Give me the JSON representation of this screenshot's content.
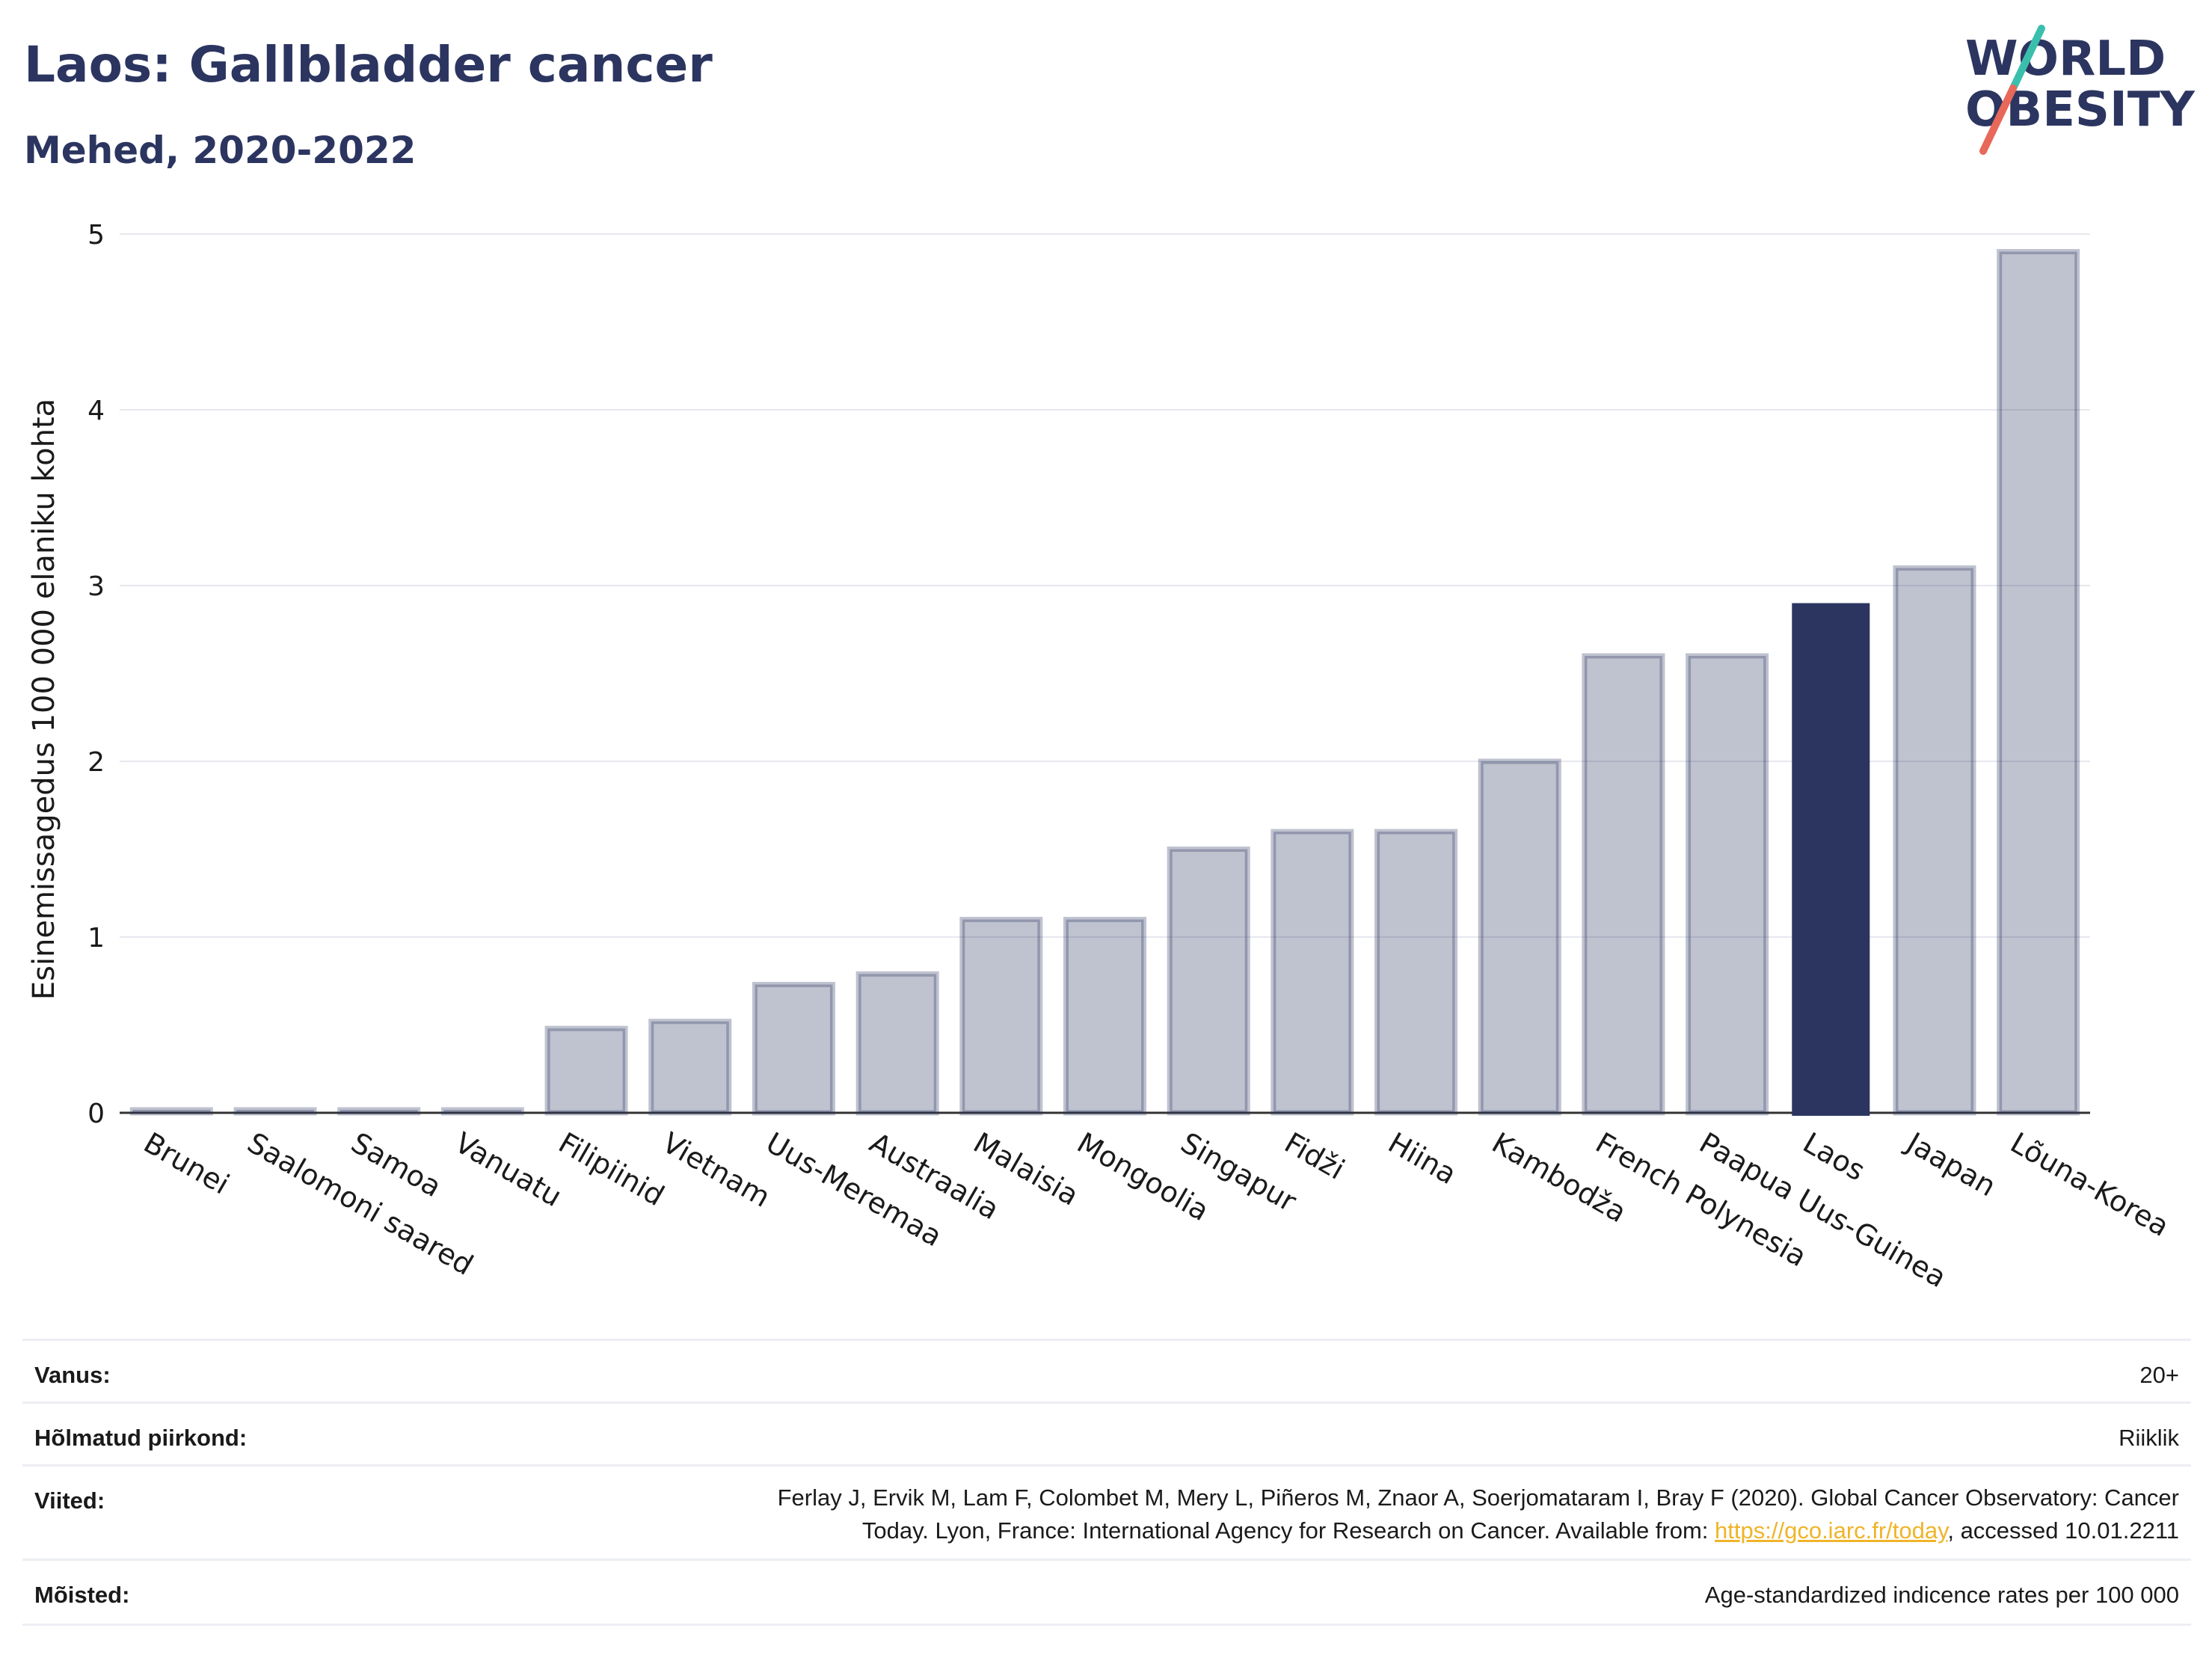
{
  "header": {
    "title": "Laos: Gallbladder cancer",
    "subtitle": "Mehed, 2020-2022"
  },
  "logo": {
    "line1": "WORLD",
    "line2": "OBESITY",
    "colors": {
      "text": "#2b3560",
      "slash_teal": "#3bbfad",
      "slash_coral": "#e8685a"
    }
  },
  "chart_data": {
    "type": "bar",
    "ylabel": "Esinemissagedus 100 000 elaniku kohta",
    "ylim": [
      0,
      5
    ],
    "yticks": [
      0,
      1,
      2,
      3,
      4,
      5
    ],
    "grid": true,
    "categories": [
      "Brunei",
      "Saalomoni saared",
      "Samoa",
      "Vanuatu",
      "Filipiinid",
      "Vietnam",
      "Uus-Meremaa",
      "Austraalia",
      "Malaisia",
      "Mongoolia",
      "Singapur",
      "Fidži",
      "Hiina",
      "Kambodža",
      "French Polynesia",
      "Paapua Uus-Guinea",
      "Laos",
      "Jaapan",
      "Lõuna-Korea"
    ],
    "values": [
      0,
      0,
      0,
      0,
      0.48,
      0.52,
      0.73,
      0.79,
      1.1,
      1.1,
      1.5,
      1.6,
      1.6,
      2.0,
      2.6,
      2.6,
      2.9,
      3.1,
      4.9
    ],
    "highlight": "Laos",
    "colors": {
      "bar": "#2b3560",
      "bar_fill_opacity": 0.3,
      "highlight": "#2b3560"
    }
  },
  "meta": {
    "rows": [
      {
        "label": "Vanus:",
        "value_lines": [
          "20+"
        ]
      },
      {
        "label": "Hõlmatud piirkond:",
        "value_lines": [
          "Riiklik"
        ]
      },
      {
        "label": "Viited:",
        "value_lines": [
          "Ferlay J, Ervik M, Lam F, Colombet M, Mery L, Piñeros M, Znaor A, Soerjomataram I, Bray F (2020). Global Cancer Observatory: Cancer"
        ],
        "line2_before": "Today. Lyon, France: International Agency for Research on Cancer. Available from: ",
        "line2_link": "https://gco.iarc.fr/today",
        "line2_after": ", accessed 10.01.2211"
      },
      {
        "label": "Mõisted:",
        "value_lines": [
          "Age-standardized indicence rates per 100 000"
        ]
      }
    ]
  }
}
